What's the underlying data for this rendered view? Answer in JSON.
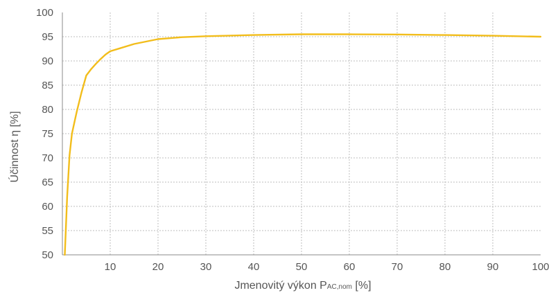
{
  "chart_data": {
    "type": "line",
    "title": "",
    "xlabel": {
      "prefix": "Jmenovitý výkon P",
      "subscript": "AC,nom",
      "suffix": " [%]"
    },
    "ylabel": "Účinnost η [%]",
    "xlim": [
      0,
      100
    ],
    "ylim": [
      50,
      100
    ],
    "x_ticks": [
      10,
      20,
      30,
      40,
      50,
      60,
      70,
      80,
      90,
      100
    ],
    "y_ticks": [
      50,
      55,
      60,
      65,
      70,
      75,
      80,
      85,
      90,
      95,
      100
    ],
    "grid": true,
    "legend": "none",
    "line_color": "#f2bd1b",
    "grid_color": "#bdbdbd",
    "axis_color": "#8a8a8a",
    "series": [
      {
        "x": [
          0.5,
          1.0,
          1.5,
          2.0,
          2.5,
          3.0,
          4.0,
          5.0,
          6.0,
          7.0,
          8.0,
          9.0,
          10.0,
          12.0,
          15.0,
          20.0,
          25.0,
          30.0,
          40.0,
          50.0,
          60.0,
          70.0,
          80.0,
          90.0,
          100.0
        ],
        "y": [
          50.0,
          62.0,
          70.5,
          75.0,
          77.3,
          79.5,
          83.5,
          87.0,
          88.3,
          89.4,
          90.4,
          91.3,
          92.0,
          92.6,
          93.5,
          94.5,
          94.9,
          95.1,
          95.35,
          95.5,
          95.5,
          95.45,
          95.35,
          95.2,
          95.0
        ]
      }
    ]
  }
}
